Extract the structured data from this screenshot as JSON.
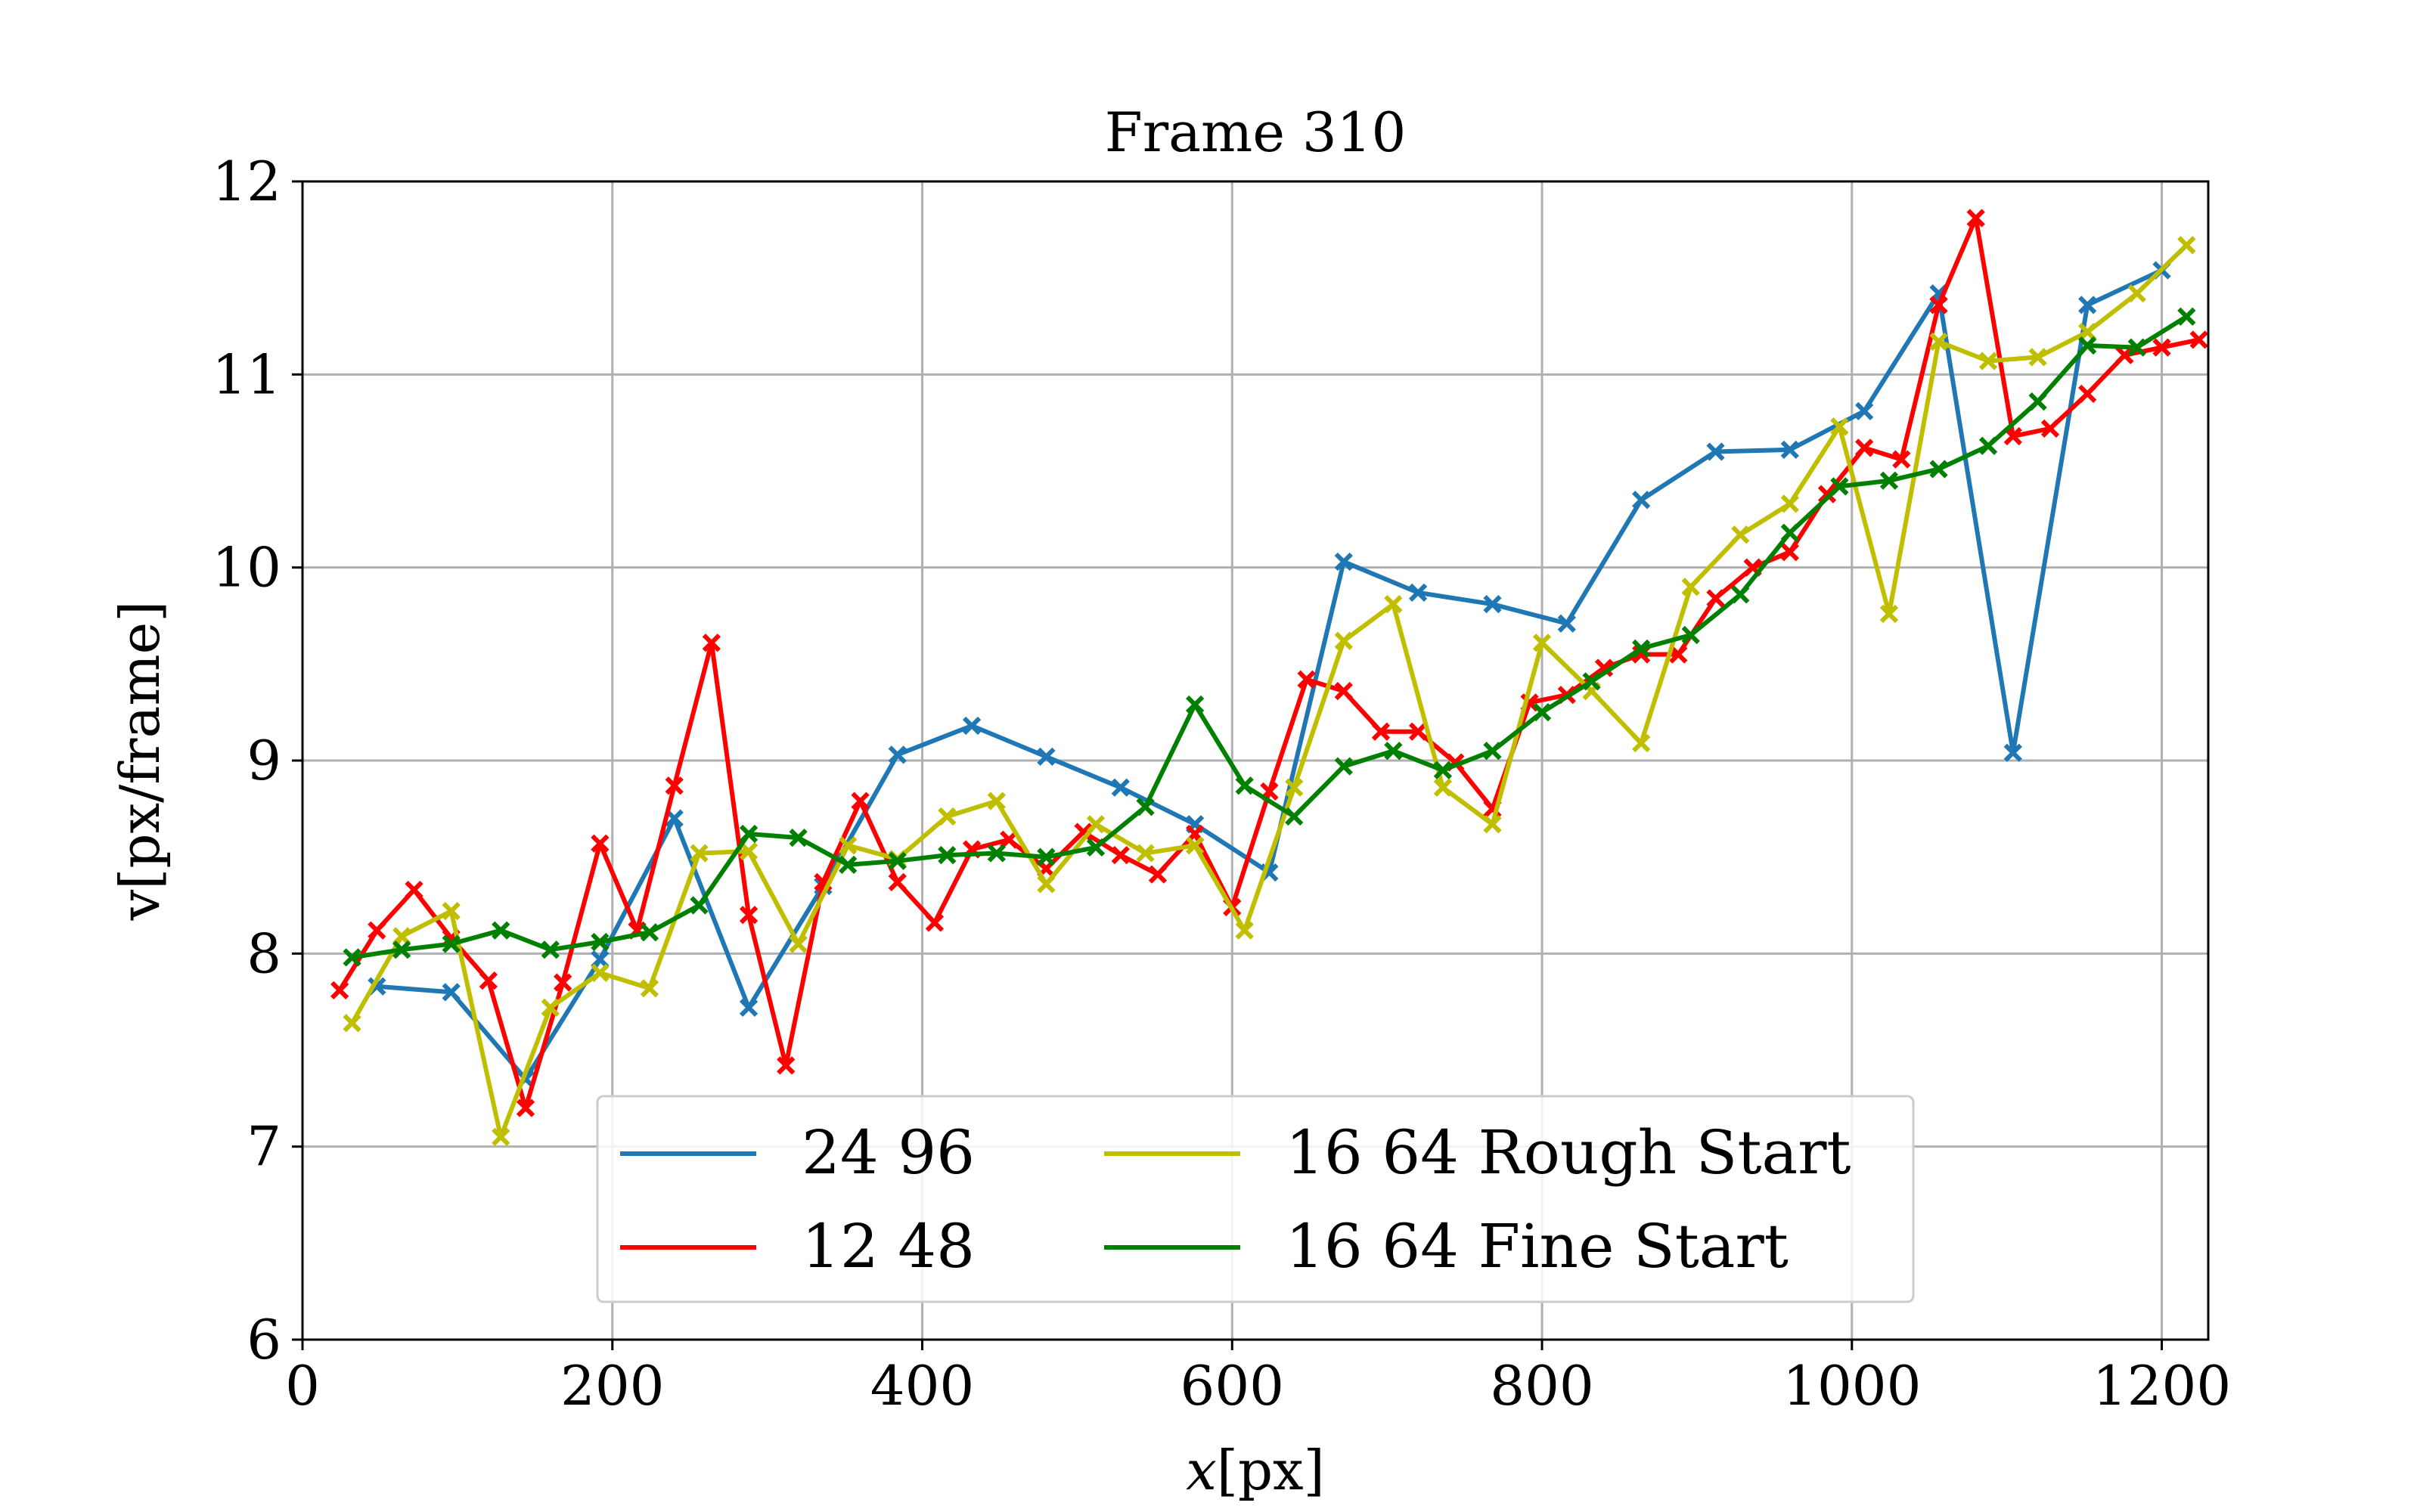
{
  "chart_data": {
    "type": "line",
    "title": "Frame 310",
    "xlabel": "x[px]",
    "xlabel_italic_part": "x",
    "xlabel_unit_part": "[px]",
    "ylabel": "v[px/frame]",
    "xlim": [
      0,
      1230
    ],
    "ylim": [
      6,
      12
    ],
    "xticks": [
      0,
      200,
      400,
      600,
      800,
      1000,
      1200
    ],
    "yticks": [
      6,
      7,
      8,
      9,
      10,
      11,
      12
    ],
    "grid": true,
    "legend": {
      "placement": "lower-center",
      "columns": 2
    },
    "marker": "x",
    "series": [
      {
        "name": "24 96",
        "color": "#1f77b4",
        "points": [
          [
            48,
            7.83
          ],
          [
            96,
            7.8
          ],
          [
            144,
            7.35
          ],
          [
            192,
            7.97
          ],
          [
            240,
            8.7
          ],
          [
            288,
            7.72
          ],
          [
            336,
            8.35
          ],
          [
            384,
            9.03
          ],
          [
            432,
            9.18
          ],
          [
            480,
            9.02
          ],
          [
            528,
            8.86
          ],
          [
            576,
            8.67
          ],
          [
            624,
            8.42
          ],
          [
            672,
            10.03
          ],
          [
            720,
            9.87
          ],
          [
            768,
            9.81
          ],
          [
            816,
            9.71
          ],
          [
            864,
            10.35
          ],
          [
            912,
            10.6
          ],
          [
            960,
            10.61
          ],
          [
            1008,
            10.81
          ],
          [
            1056,
            11.42
          ],
          [
            1104,
            9.04
          ],
          [
            1152,
            11.36
          ],
          [
            1200,
            11.54
          ]
        ]
      },
      {
        "name": "12 48",
        "color": "#ff0000",
        "points": [
          [
            24,
            7.81
          ],
          [
            48,
            8.12
          ],
          [
            72,
            8.33
          ],
          [
            96,
            8.08
          ],
          [
            120,
            7.86
          ],
          [
            144,
            7.2
          ],
          [
            168,
            7.85
          ],
          [
            192,
            8.57
          ],
          [
            216,
            8.12
          ],
          [
            240,
            8.87
          ],
          [
            264,
            9.61
          ],
          [
            288,
            8.2
          ],
          [
            312,
            7.42
          ],
          [
            336,
            8.37
          ],
          [
            360,
            8.79
          ],
          [
            384,
            8.37
          ],
          [
            408,
            8.16
          ],
          [
            432,
            8.54
          ],
          [
            456,
            8.59
          ],
          [
            480,
            8.44
          ],
          [
            504,
            8.63
          ],
          [
            528,
            8.51
          ],
          [
            552,
            8.41
          ],
          [
            576,
            8.62
          ],
          [
            600,
            8.24
          ],
          [
            624,
            8.84
          ],
          [
            648,
            9.42
          ],
          [
            672,
            9.36
          ],
          [
            696,
            9.15
          ],
          [
            720,
            9.15
          ],
          [
            744,
            8.99
          ],
          [
            768,
            8.75
          ],
          [
            792,
            9.3
          ],
          [
            816,
            9.34
          ],
          [
            840,
            9.48
          ],
          [
            864,
            9.55
          ],
          [
            888,
            9.55
          ],
          [
            912,
            9.84
          ],
          [
            936,
            10.0
          ],
          [
            960,
            10.08
          ],
          [
            984,
            10.38
          ],
          [
            1008,
            10.62
          ],
          [
            1032,
            10.56
          ],
          [
            1056,
            11.36
          ],
          [
            1080,
            11.81
          ],
          [
            1104,
            10.68
          ],
          [
            1128,
            10.72
          ],
          [
            1152,
            10.9
          ],
          [
            1176,
            11.1
          ],
          [
            1200,
            11.14
          ],
          [
            1224,
            11.18
          ]
        ]
      },
      {
        "name": "16 64 Rough Start",
        "color": "#bfbf00",
        "points": [
          [
            32,
            7.64
          ],
          [
            64,
            8.09
          ],
          [
            96,
            8.22
          ],
          [
            128,
            7.05
          ],
          [
            160,
            7.72
          ],
          [
            192,
            7.9
          ],
          [
            224,
            7.82
          ],
          [
            256,
            8.52
          ],
          [
            288,
            8.53
          ],
          [
            320,
            8.05
          ],
          [
            352,
            8.56
          ],
          [
            384,
            8.49
          ],
          [
            416,
            8.71
          ],
          [
            448,
            8.79
          ],
          [
            480,
            8.36
          ],
          [
            512,
            8.67
          ],
          [
            544,
            8.52
          ],
          [
            576,
            8.56
          ],
          [
            608,
            8.12
          ],
          [
            640,
            8.86
          ],
          [
            672,
            9.62
          ],
          [
            704,
            9.81
          ],
          [
            736,
            8.86
          ],
          [
            768,
            8.67
          ],
          [
            800,
            9.61
          ],
          [
            832,
            9.36
          ],
          [
            864,
            9.09
          ],
          [
            896,
            9.9
          ],
          [
            928,
            10.17
          ],
          [
            960,
            10.33
          ],
          [
            992,
            10.73
          ],
          [
            1024,
            9.76
          ],
          [
            1056,
            11.17
          ],
          [
            1088,
            11.07
          ],
          [
            1120,
            11.09
          ],
          [
            1152,
            11.22
          ],
          [
            1184,
            11.42
          ],
          [
            1216,
            11.67
          ]
        ]
      },
      {
        "name": "16 64 Fine Start",
        "color": "#008000",
        "points": [
          [
            32,
            7.98
          ],
          [
            64,
            8.02
          ],
          [
            96,
            8.05
          ],
          [
            128,
            8.12
          ],
          [
            160,
            8.02
          ],
          [
            192,
            8.06
          ],
          [
            224,
            8.11
          ],
          [
            256,
            8.25
          ],
          [
            288,
            8.62
          ],
          [
            320,
            8.6
          ],
          [
            352,
            8.46
          ],
          [
            384,
            8.48
          ],
          [
            416,
            8.51
          ],
          [
            448,
            8.52
          ],
          [
            480,
            8.5
          ],
          [
            512,
            8.55
          ],
          [
            544,
            8.76
          ],
          [
            576,
            9.29
          ],
          [
            608,
            8.87
          ],
          [
            640,
            8.71
          ],
          [
            672,
            8.97
          ],
          [
            704,
            9.05
          ],
          [
            736,
            8.95
          ],
          [
            768,
            9.05
          ],
          [
            800,
            9.25
          ],
          [
            832,
            9.41
          ],
          [
            864,
            9.58
          ],
          [
            896,
            9.65
          ],
          [
            928,
            9.86
          ],
          [
            960,
            10.18
          ],
          [
            992,
            10.42
          ],
          [
            1024,
            10.45
          ],
          [
            1056,
            10.51
          ],
          [
            1088,
            10.63
          ],
          [
            1120,
            10.86
          ],
          [
            1152,
            11.15
          ],
          [
            1184,
            11.14
          ],
          [
            1216,
            11.3
          ]
        ]
      }
    ]
  }
}
